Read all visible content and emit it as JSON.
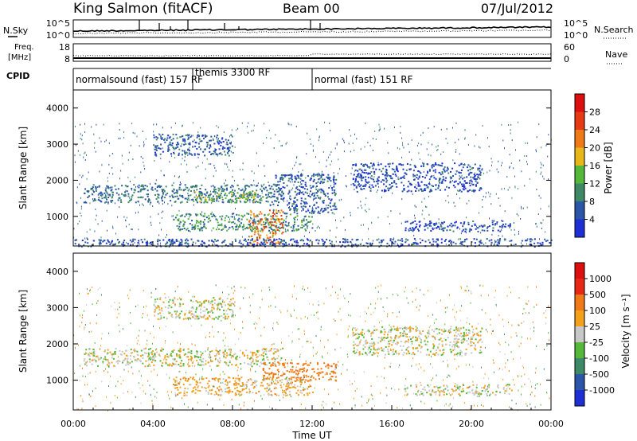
{
  "header": {
    "station": "King Salmon (fitACF)",
    "beam": "Beam 00",
    "date": "07/Jul/2012"
  },
  "noise_panel": {
    "left_label": "N.Sky",
    "right_label": "N.Search",
    "left_ticks": [
      "10^5",
      "10^0"
    ],
    "right_ticks": [
      "10^5",
      "10^0"
    ]
  },
  "freq_panel": {
    "left_label_1": "Freq.",
    "left_label_2": "[MHz]",
    "right_label": "Nave",
    "left_ticks": [
      "18",
      "8"
    ],
    "right_ticks": [
      "60",
      "0"
    ]
  },
  "cpid": {
    "label": "CPID",
    "segments": [
      {
        "start": 0.0,
        "end": 6.0,
        "name": "normalsound (fast) 157 RF"
      },
      {
        "start": 6.0,
        "end": 12.0,
        "name": "themis 3300 RF"
      },
      {
        "start": 12.0,
        "end": 24.0,
        "name": "normal (fast) 151 RF"
      }
    ]
  },
  "axes": {
    "ylabel": "Slant Range [km]",
    "xlabel": "Time UT",
    "yticks": [
      "1000",
      "2000",
      "3000",
      "4000"
    ],
    "xticks": [
      "00:00",
      "04:00",
      "08:00",
      "12:00",
      "16:00",
      "20:00",
      "00:00"
    ]
  },
  "power_colorbar": {
    "label": "Power [dB]",
    "ticks": [
      "4",
      "8",
      "12",
      "16",
      "20",
      "24",
      "28"
    ],
    "colors": [
      "#1f2fd6",
      "#2c56a8",
      "#3f8a66",
      "#56b83a",
      "#e8b81a",
      "#f07a18",
      "#e83a14",
      "#dd0f0f"
    ]
  },
  "velocity_colorbar": {
    "label": "Velocity [m s⁻¹]",
    "ticks": [
      "1000",
      "500",
      "100",
      "25",
      "-25",
      "-100",
      "-500",
      "-1000"
    ],
    "colors": [
      "#1f2fd6",
      "#2c56a8",
      "#3f8a66",
      "#56b83a",
      "#c8c8c8",
      "#f3a01a",
      "#f07a18",
      "#e82814",
      "#dd0f0f"
    ]
  },
  "chart_data": {
    "type": "heatmap",
    "x_range_hours": [
      0,
      24
    ],
    "y_range_km": [
      180,
      4500
    ],
    "panels": [
      {
        "parameter": "power",
        "units": "dB",
        "scatter_bands": [
          {
            "t_start": 0.5,
            "t_end": 10.5,
            "range_km_start": 1400,
            "range_km_end": 1900,
            "typical_value": 8
          },
          {
            "t_start": 6.0,
            "t_end": 9.5,
            "range_km_start": 1400,
            "range_km_end": 1700,
            "typical_value": 14
          },
          {
            "t_start": 10.0,
            "t_end": 13.2,
            "range_km_start": 1100,
            "range_km_end": 2200,
            "typical_value": 6
          },
          {
            "t_start": 5.0,
            "t_end": 12.0,
            "range_km_start": 600,
            "range_km_end": 1100,
            "typical_value": 10
          },
          {
            "t_start": 8.8,
            "t_end": 10.5,
            "range_km_start": 250,
            "range_km_end": 1200,
            "typical_value": 22
          },
          {
            "t_start": 4.0,
            "t_end": 8.0,
            "range_km_start": 2700,
            "range_km_end": 3300,
            "typical_value": 6
          },
          {
            "t_start": 14.0,
            "t_end": 20.5,
            "range_km_start": 1700,
            "range_km_end": 2500,
            "typical_value": 5
          },
          {
            "t_start": 16.5,
            "t_end": 22.0,
            "range_km_start": 600,
            "range_km_end": 900,
            "typical_value": 5
          },
          {
            "t_start": 0.0,
            "t_end": 24.0,
            "range_km_start": 180,
            "range_km_end": 400,
            "typical_value": 5
          }
        ]
      },
      {
        "parameter": "velocity",
        "units": "m s^-1",
        "scatter_bands": [
          {
            "t_start": 0.5,
            "t_end": 10.5,
            "range_km_start": 1400,
            "range_km_end": 1900,
            "typical_value": 0
          },
          {
            "t_start": 9.5,
            "t_end": 13.2,
            "range_km_start": 1000,
            "range_km_end": 1500,
            "typical_value": -300
          },
          {
            "t_start": 5.0,
            "t_end": 12.0,
            "range_km_start": 600,
            "range_km_end": 1100,
            "typical_value": -60
          },
          {
            "t_start": 4.0,
            "t_end": 8.0,
            "range_km_start": 2700,
            "range_km_end": 3300,
            "typical_value": 0
          },
          {
            "t_start": 14.0,
            "t_end": 20.5,
            "range_km_start": 1700,
            "range_km_end": 2500,
            "typical_value": 0
          },
          {
            "t_start": 16.5,
            "t_end": 22.0,
            "range_km_start": 600,
            "range_km_end": 900,
            "typical_value": 0
          }
        ]
      }
    ]
  }
}
